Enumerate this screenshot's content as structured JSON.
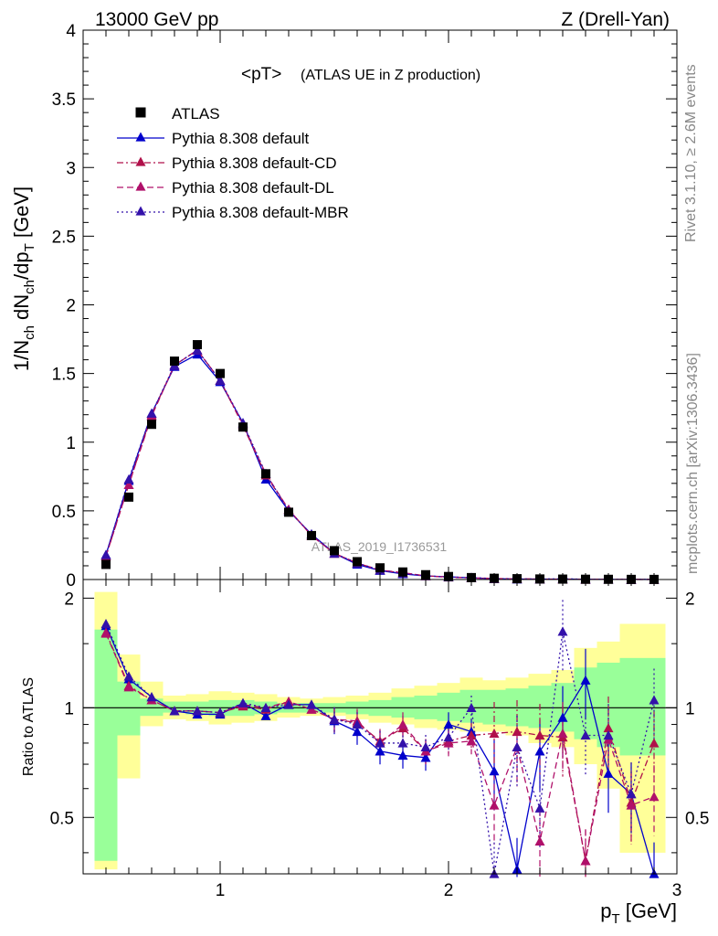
{
  "header": {
    "left": "13000 GeV pp",
    "right": "Z (Drell-Yan)"
  },
  "side_labels": {
    "rivet": "Rivet 3.1.10, ≥ 2.6M events",
    "source": "mcplots.cern.ch [arXiv:1306.3436]"
  },
  "chart_data": [
    {
      "type": "scatter",
      "title": "<pT> (ATLAS UE in Z production)",
      "title_main": "<pT>",
      "title_sub": "(ATLAS UE in Z production)",
      "ylabel": "1/Nch dNch/dpT [GeV]",
      "xlabel": "pT [GeV]",
      "watermark": "ATLAS_2019_I1736531",
      "xlim": [
        0.4,
        3.0
      ],
      "ylim": [
        0,
        4
      ],
      "yticks": [
        "0",
        "0.5",
        "1",
        "1.5",
        "2",
        "2.5",
        "3",
        "3.5",
        "4"
      ],
      "legend_placement": "top-left",
      "x": [
        0.5,
        0.6,
        0.7,
        0.8,
        0.9,
        1.0,
        1.1,
        1.2,
        1.3,
        1.4,
        1.5,
        1.6,
        1.7,
        1.8,
        1.9,
        2.0,
        2.1,
        2.2,
        2.3,
        2.4,
        2.5,
        2.6,
        2.7,
        2.8,
        2.9
      ],
      "series": [
        {
          "name": "ATLAS",
          "color": "#000000",
          "marker": "square",
          "dash": "none",
          "values": [
            0.11,
            0.6,
            1.13,
            1.59,
            1.71,
            1.5,
            1.11,
            0.77,
            0.49,
            0.32,
            0.21,
            0.13,
            0.085,
            0.055,
            0.035,
            0.022,
            0.014,
            0.009,
            0.006,
            0.004,
            0.003,
            0.002,
            0.0015,
            0.001,
            0.0008
          ]
        },
        {
          "name": "Pythia 8.308 default",
          "color": "#0000cc",
          "marker": "triangle",
          "dash": "solid",
          "values": [
            0.18,
            0.72,
            1.21,
            1.55,
            1.64,
            1.44,
            1.14,
            0.73,
            0.5,
            0.33,
            0.19,
            0.11,
            0.065,
            0.041,
            0.026,
            0.02,
            0.012,
            0.006,
            0.003,
            0.003,
            0.003,
            0.002,
            0.001,
            0.0006,
            0.0003
          ]
        },
        {
          "name": "Pythia 8.308 default-CD",
          "color": "#b0104a",
          "marker": "triangle",
          "dash": "dashdot",
          "values": [
            0.17,
            0.69,
            1.2,
            1.56,
            1.67,
            1.45,
            1.12,
            0.76,
            0.51,
            0.32,
            0.19,
            0.12,
            0.068,
            0.048,
            0.027,
            0.018,
            0.012,
            0.008,
            0.005,
            0.003,
            0.002,
            0.001,
            0.0013,
            0.0006,
            0.0006
          ]
        },
        {
          "name": "Pythia 8.308 default-DL",
          "color": "#b0106a",
          "marker": "triangle",
          "dash": "dash",
          "values": [
            0.17,
            0.69,
            1.19,
            1.56,
            1.67,
            1.45,
            1.13,
            0.77,
            0.51,
            0.32,
            0.19,
            0.12,
            0.069,
            0.05,
            0.026,
            0.017,
            0.012,
            0.005,
            0.005,
            0.002,
            0.002,
            0.0007,
            0.0009,
            0.0006,
            0.0005
          ]
        },
        {
          "name": "Pythia 8.308 default-MBR",
          "color": "#3311aa",
          "marker": "triangle",
          "dash": "dot",
          "values": [
            0.18,
            0.73,
            1.21,
            1.56,
            1.67,
            1.45,
            1.14,
            0.77,
            0.5,
            0.33,
            0.19,
            0.12,
            0.068,
            0.044,
            0.027,
            0.018,
            0.014,
            0.006,
            0.004,
            0.003,
            0.005,
            0.002,
            0.0012,
            0.0006,
            0.0009
          ]
        }
      ]
    },
    {
      "type": "scatter",
      "ylabel": "Ratio to ATLAS",
      "xlabel": "pT [GeV]",
      "xlim": [
        0.4,
        3.0
      ],
      "ylim": [
        0.35,
        2.25
      ],
      "yscale": "log",
      "xticks": [
        "1",
        "2",
        "3"
      ],
      "yticks": [
        "0.5",
        "1",
        "2"
      ],
      "reference_line": 1,
      "x": [
        0.5,
        0.6,
        0.7,
        0.8,
        0.9,
        1.0,
        1.1,
        1.2,
        1.3,
        1.4,
        1.5,
        1.6,
        1.7,
        1.8,
        1.9,
        2.0,
        2.1,
        2.2,
        2.3,
        2.4,
        2.5,
        2.6,
        2.7,
        2.8,
        2.9
      ],
      "bands": [
        {
          "name": "total uncertainty",
          "color": "#ffff99",
          "lower": [
            0.36,
            0.64,
            0.89,
            0.93,
            0.92,
            0.9,
            0.91,
            0.92,
            0.94,
            0.95,
            0.95,
            0.93,
            0.91,
            0.9,
            0.88,
            0.87,
            0.86,
            0.86,
            0.84,
            0.8,
            0.78,
            0.7,
            0.6,
            0.4,
            0.4
          ],
          "upper": [
            2.08,
            1.4,
            1.18,
            1.08,
            1.09,
            1.11,
            1.1,
            1.09,
            1.07,
            1.06,
            1.07,
            1.08,
            1.1,
            1.13,
            1.15,
            1.17,
            1.21,
            1.19,
            1.21,
            1.24,
            1.27,
            1.46,
            1.52,
            1.7,
            1.7
          ]
        },
        {
          "name": "statistical uncertainty",
          "color": "#99ff99",
          "lower": [
            0.38,
            0.84,
            0.95,
            0.97,
            0.96,
            0.95,
            0.95,
            0.96,
            0.97,
            0.97,
            0.97,
            0.96,
            0.95,
            0.94,
            0.93,
            0.92,
            0.91,
            0.9,
            0.89,
            0.88,
            0.86,
            0.82,
            0.78,
            0.74,
            0.74
          ],
          "upper": [
            1.64,
            1.18,
            1.06,
            1.04,
            1.04,
            1.05,
            1.05,
            1.04,
            1.03,
            1.03,
            1.03,
            1.04,
            1.05,
            1.07,
            1.08,
            1.1,
            1.12,
            1.12,
            1.13,
            1.15,
            1.17,
            1.29,
            1.33,
            1.37,
            1.37
          ]
        }
      ],
      "series": [
        {
          "name": "Pythia 8.308 default",
          "color": "#0000cc",
          "dash": "solid",
          "values": [
            1.68,
            1.2,
            1.07,
            0.98,
            0.96,
            0.96,
            1.03,
            0.95,
            1.02,
            1.02,
            0.92,
            0.86,
            0.76,
            0.74,
            0.73,
            0.9,
            0.86,
            0.67,
            0.36,
            0.76,
            0.94,
            1.19,
            0.66,
            0.58,
            0.35
          ]
        },
        {
          "name": "Pythia 8.308 default-CD",
          "color": "#b0104a",
          "dash": "dashdot",
          "values": [
            1.61,
            1.15,
            1.05,
            0.98,
            0.98,
            0.97,
            1.01,
            0.99,
            1.04,
            0.99,
            0.93,
            0.91,
            0.81,
            0.88,
            0.76,
            0.81,
            0.84,
            0.85,
            0.86,
            0.84,
            0.83,
            0.38,
            0.88,
            0.55,
            0.8
          ]
        },
        {
          "name": "Pythia 8.308 default-DL",
          "color": "#b0106a",
          "dash": "dash",
          "values": [
            1.6,
            1.14,
            1.05,
            0.98,
            0.98,
            0.97,
            1.02,
            1.0,
            1.04,
            0.99,
            0.93,
            0.92,
            0.8,
            0.9,
            0.76,
            0.8,
            0.81,
            0.54,
            0.78,
            0.43,
            0.85,
            0.38,
            0.82,
            0.54,
            0.57
          ]
        },
        {
          "name": "Pythia 8.308 default-MBR",
          "color": "#3311aa",
          "dash": "dot",
          "values": [
            1.7,
            1.22,
            1.07,
            0.98,
            0.98,
            0.97,
            1.03,
            1.0,
            1.02,
            1.02,
            0.93,
            0.9,
            0.8,
            0.8,
            0.78,
            0.83,
            1.0,
            0.35,
            0.78,
            0.53,
            1.62,
            0.84,
            0.84,
            0.58,
            1.05
          ]
        }
      ]
    }
  ]
}
